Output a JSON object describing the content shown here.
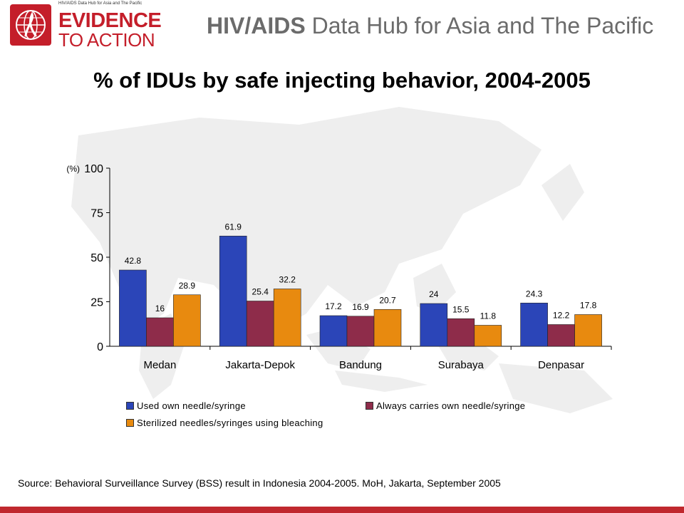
{
  "header": {
    "logo_small_text": "HIV/AIDS Data Hub for Asia and The Pacific",
    "logo_line1": "EVIDENCE",
    "logo_line2": "TO ACTION",
    "title_bold": "HIV/AIDS",
    "title_rest": "Data Hub for Asia and The Pacific"
  },
  "colors": {
    "brand_red": "#c41e2a",
    "series": [
      "#2b45b8",
      "#8e2c4a",
      "#e88a0f"
    ]
  },
  "chart_data": {
    "type": "bar",
    "title": "% of IDUs by safe injecting behavior, 2004-2005",
    "ylabel": "(%)",
    "ylim": [
      0,
      100
    ],
    "yticks": [
      0,
      25,
      50,
      75,
      100
    ],
    "categories": [
      "Medan",
      "Jakarta-Depok",
      "Bandung",
      "Surabaya",
      "Denpasar"
    ],
    "series": [
      {
        "name": "Used own needle/syringe",
        "values": [
          42.8,
          61.9,
          17.2,
          24,
          24.3
        ],
        "labels": [
          "42.8",
          "61.9",
          "17.2",
          "24",
          "24.3"
        ]
      },
      {
        "name": "Always carries own needle/syringe",
        "values": [
          16,
          25.4,
          16.9,
          15.5,
          12.2
        ],
        "labels": [
          "16",
          "25.4",
          "16.9",
          "15.5",
          "12.2"
        ]
      },
      {
        "name": "Sterilized needles/syringes using bleaching",
        "values": [
          28.9,
          32.2,
          20.7,
          11.8,
          17.8
        ],
        "labels": [
          "28.9",
          "32.2",
          "20.7",
          "11.8",
          "17.8"
        ]
      }
    ],
    "legend_position": "bottom",
    "grid": false
  },
  "source": "Source: Behavioral Surveillance Survey (BSS) result in Indonesia 2004-2005. MoH, Jakarta, September 2005"
}
